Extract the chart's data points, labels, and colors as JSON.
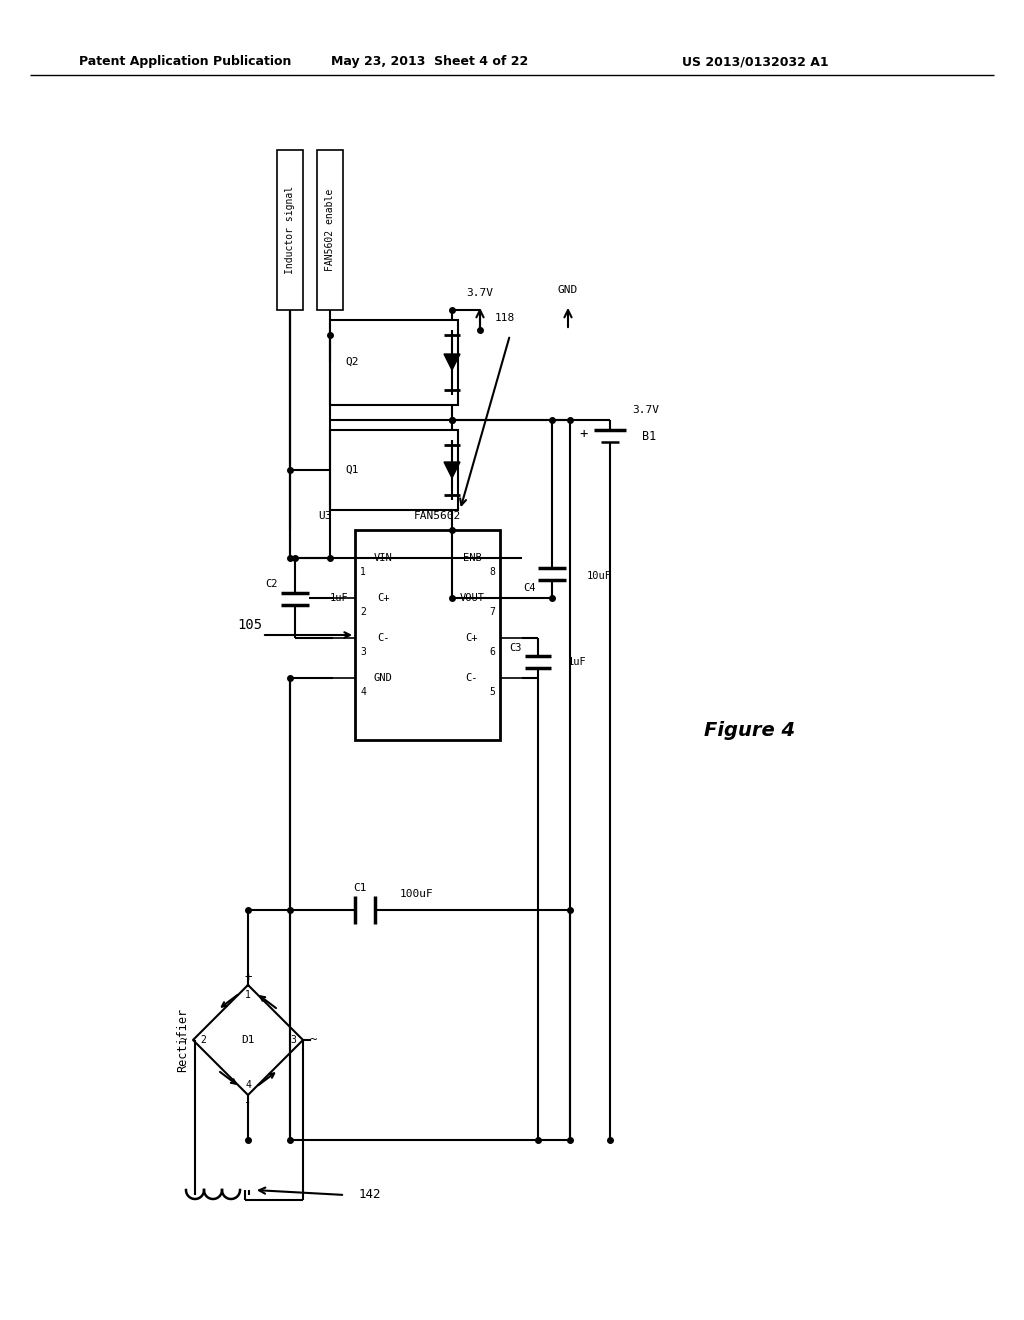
{
  "header_left": "Patent Application Publication",
  "header_mid": "May 23, 2013  Sheet 4 of 22",
  "header_right": "US 2013/0132032 A1",
  "figure_label": "Figure 4",
  "bg": "#ffffff"
}
